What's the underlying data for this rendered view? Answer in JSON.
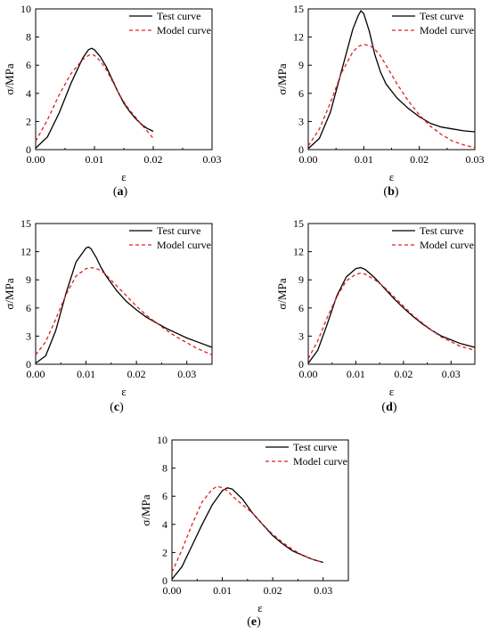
{
  "chart_data": [
    {
      "id": "a",
      "type": "line",
      "caption": {
        "open": "(",
        "letter": "a",
        "close": ")"
      },
      "xlabel": "ε",
      "ylabel": "σ/MPa",
      "xlim": [
        0,
        0.03
      ],
      "ylim": [
        0,
        10
      ],
      "xticks": [
        "0.00",
        "0.01",
        "0.02",
        "0.03"
      ],
      "yticks": [
        "0",
        "2",
        "4",
        "6",
        "8",
        "10"
      ],
      "legend": "top-right",
      "series": [
        {
          "name": "Test curve",
          "style": "solid",
          "color": "#000000",
          "x": [
            0,
            0.002,
            0.004,
            0.006,
            0.008,
            0.009,
            0.0095,
            0.01,
            0.011,
            0.012,
            0.013,
            0.014,
            0.015,
            0.016,
            0.017,
            0.018,
            0.019,
            0.02
          ],
          "y": [
            0.1,
            0.9,
            2.6,
            4.7,
            6.5,
            7.1,
            7.2,
            7.1,
            6.6,
            5.9,
            5.0,
            4.1,
            3.3,
            2.7,
            2.2,
            1.8,
            1.5,
            1.3
          ]
        },
        {
          "name": "Model curve",
          "style": "dashed",
          "color": "#e02020",
          "x": [
            0,
            0.002,
            0.004,
            0.006,
            0.008,
            0.009,
            0.0095,
            0.01,
            0.011,
            0.012,
            0.013,
            0.014,
            0.015,
            0.016,
            0.017,
            0.018,
            0.019,
            0.02
          ],
          "y": [
            0.6,
            2.1,
            3.9,
            5.4,
            6.4,
            6.7,
            6.75,
            6.7,
            6.3,
            5.7,
            4.9,
            4.1,
            3.4,
            2.8,
            2.3,
            1.8,
            1.3,
            0.8
          ]
        }
      ]
    },
    {
      "id": "b",
      "type": "line",
      "caption": {
        "open": "(",
        "letter": "b",
        "close": ")"
      },
      "xlabel": "ε",
      "ylabel": "σ/MPa",
      "xlim": [
        0,
        0.03
      ],
      "ylim": [
        0,
        15
      ],
      "xticks": [
        "0.00",
        "0.01",
        "0.02",
        "0.03"
      ],
      "yticks": [
        "0",
        "3",
        "6",
        "9",
        "12",
        "15"
      ],
      "legend": "top-right",
      "series": [
        {
          "name": "Test curve",
          "style": "solid",
          "color": "#000000",
          "x": [
            0,
            0.002,
            0.004,
            0.006,
            0.008,
            0.009,
            0.0095,
            0.01,
            0.011,
            0.012,
            0.013,
            0.014,
            0.016,
            0.018,
            0.02,
            0.022,
            0.024,
            0.026,
            0.028,
            0.03
          ],
          "y": [
            0.1,
            1.2,
            4.0,
            8.4,
            12.8,
            14.3,
            14.8,
            14.5,
            12.6,
            10.1,
            8.3,
            7.0,
            5.5,
            4.4,
            3.5,
            2.8,
            2.4,
            2.2,
            2.0,
            1.9
          ]
        },
        {
          "name": "Model curve",
          "style": "dashed",
          "color": "#e02020",
          "x": [
            0,
            0.002,
            0.004,
            0.006,
            0.008,
            0.009,
            0.01,
            0.011,
            0.012,
            0.013,
            0.014,
            0.016,
            0.018,
            0.02,
            0.022,
            0.024,
            0.026,
            0.028,
            0.03
          ],
          "y": [
            0.4,
            2.2,
            5.0,
            8.2,
            10.4,
            11.0,
            11.2,
            11.1,
            10.7,
            10.0,
            9.0,
            7.0,
            5.2,
            3.7,
            2.5,
            1.6,
            0.9,
            0.5,
            0.2
          ]
        }
      ]
    },
    {
      "id": "c",
      "type": "line",
      "caption": {
        "open": "(",
        "letter": "c",
        "close": ")"
      },
      "xlabel": "ε",
      "ylabel": "σ/MPa",
      "xlim": [
        0,
        0.035
      ],
      "ylim": [
        0,
        15
      ],
      "xticks": [
        "0.00",
        "0.01",
        "0.02",
        "0.03"
      ],
      "yticks": [
        "0",
        "3",
        "6",
        "9",
        "12",
        "15"
      ],
      "legend": "top-right",
      "series": [
        {
          "name": "Test curve",
          "style": "solid",
          "color": "#000000",
          "x": [
            0,
            0.002,
            0.004,
            0.006,
            0.008,
            0.01,
            0.0105,
            0.011,
            0.012,
            0.013,
            0.014,
            0.016,
            0.018,
            0.02,
            0.022,
            0.024,
            0.026,
            0.028,
            0.03,
            0.032,
            0.035
          ],
          "y": [
            0.1,
            0.9,
            3.6,
            7.5,
            10.9,
            12.4,
            12.5,
            12.3,
            11.4,
            10.3,
            9.4,
            7.9,
            6.7,
            5.8,
            5.0,
            4.4,
            3.8,
            3.3,
            2.8,
            2.4,
            1.8
          ]
        },
        {
          "name": "Model curve",
          "style": "dashed",
          "color": "#e02020",
          "x": [
            0,
            0.002,
            0.004,
            0.006,
            0.008,
            0.01,
            0.011,
            0.012,
            0.013,
            0.014,
            0.016,
            0.018,
            0.02,
            0.022,
            0.024,
            0.026,
            0.028,
            0.03,
            0.032,
            0.035
          ],
          "y": [
            1.0,
            2.4,
            4.8,
            7.4,
            9.4,
            10.2,
            10.3,
            10.2,
            10.0,
            9.5,
            8.4,
            7.3,
            6.2,
            5.2,
            4.4,
            3.6,
            2.9,
            2.3,
            1.7,
            1.0
          ]
        }
      ]
    },
    {
      "id": "d",
      "type": "line",
      "caption": {
        "open": "(",
        "letter": "d",
        "close": ")"
      },
      "xlabel": "ε",
      "ylabel": "σ/MPa",
      "xlim": [
        0,
        0.035
      ],
      "ylim": [
        0,
        15
      ],
      "xticks": [
        "0.00",
        "0.01",
        "0.02",
        "0.03"
      ],
      "yticks": [
        "0",
        "3",
        "6",
        "9",
        "12",
        "15"
      ],
      "legend": "top-right",
      "series": [
        {
          "name": "Test curve",
          "style": "solid",
          "color": "#000000",
          "x": [
            0,
            0.002,
            0.004,
            0.006,
            0.008,
            0.01,
            0.011,
            0.012,
            0.014,
            0.016,
            0.018,
            0.02,
            0.022,
            0.024,
            0.026,
            0.028,
            0.03,
            0.032,
            0.035
          ],
          "y": [
            0.1,
            1.5,
            4.3,
            7.3,
            9.3,
            10.2,
            10.3,
            10.1,
            9.2,
            8.1,
            7.0,
            6.0,
            5.1,
            4.3,
            3.6,
            3.0,
            2.6,
            2.2,
            1.8
          ]
        },
        {
          "name": "Model curve",
          "style": "dashed",
          "color": "#e02020",
          "x": [
            0,
            0.002,
            0.004,
            0.006,
            0.008,
            0.01,
            0.011,
            0.012,
            0.014,
            0.016,
            0.018,
            0.02,
            0.022,
            0.024,
            0.026,
            0.028,
            0.03,
            0.032,
            0.035
          ],
          "y": [
            0.6,
            2.5,
            5.0,
            7.2,
            8.9,
            9.6,
            9.7,
            9.6,
            9.0,
            8.2,
            7.2,
            6.2,
            5.2,
            4.4,
            3.6,
            2.9,
            2.4,
            1.9,
            1.5
          ]
        }
      ]
    },
    {
      "id": "e",
      "type": "line",
      "caption": {
        "open": "(",
        "letter": "e",
        "close": ")"
      },
      "xlabel": "ε",
      "ylabel": "σ/MPa",
      "xlim": [
        0,
        0.035
      ],
      "ylim": [
        0,
        10
      ],
      "xticks": [
        "0.00",
        "0.01",
        "0.02",
        "0.03"
      ],
      "yticks": [
        "0",
        "2",
        "4",
        "6",
        "8",
        "10"
      ],
      "legend": "top-right",
      "series": [
        {
          "name": "Test curve",
          "style": "solid",
          "color": "#000000",
          "x": [
            0,
            0.002,
            0.004,
            0.006,
            0.008,
            0.01,
            0.011,
            0.012,
            0.014,
            0.016,
            0.018,
            0.02,
            0.022,
            0.024,
            0.026,
            0.028,
            0.03
          ],
          "y": [
            0.1,
            1.0,
            2.5,
            4.0,
            5.4,
            6.4,
            6.6,
            6.5,
            5.8,
            4.8,
            4.0,
            3.2,
            2.6,
            2.1,
            1.8,
            1.5,
            1.3
          ]
        },
        {
          "name": "Model curve",
          "style": "dashed",
          "color": "#e02020",
          "x": [
            0,
            0.002,
            0.004,
            0.006,
            0.008,
            0.009,
            0.01,
            0.011,
            0.012,
            0.014,
            0.016,
            0.018,
            0.02,
            0.022,
            0.024,
            0.026,
            0.028,
            0.03
          ],
          "y": [
            0.6,
            2.2,
            4.0,
            5.6,
            6.5,
            6.7,
            6.6,
            6.4,
            6.0,
            5.4,
            4.8,
            4.0,
            3.3,
            2.7,
            2.2,
            1.8,
            1.5,
            1.3
          ]
        }
      ]
    }
  ]
}
